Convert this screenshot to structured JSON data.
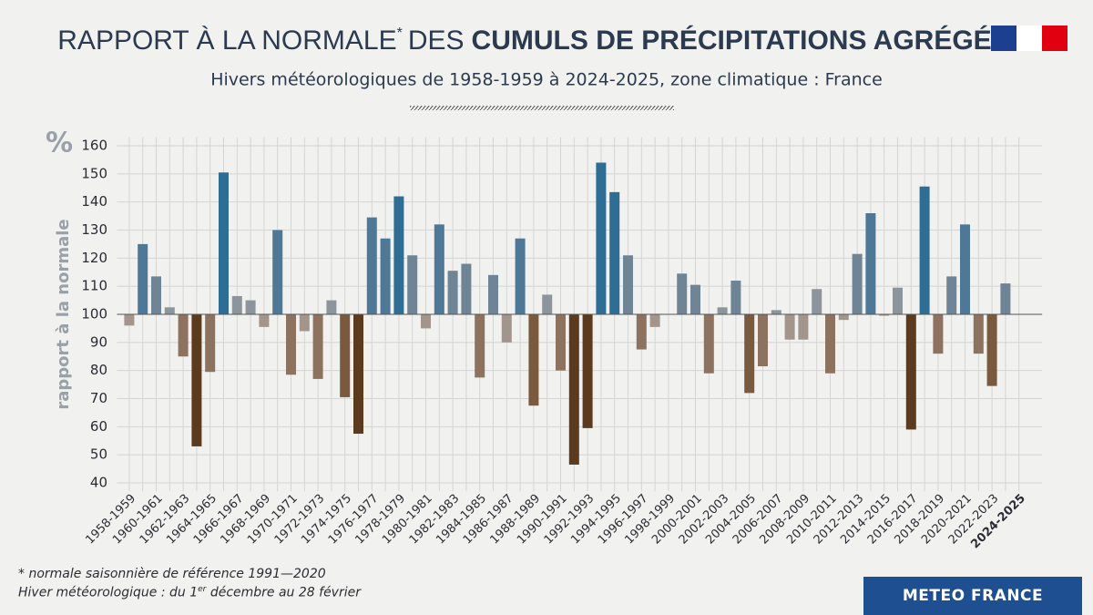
{
  "chart_data": {
    "type": "bar",
    "title_parts": [
      "RAPPORT À LA NORMALE",
      "*",
      "DES",
      "CUMULS DE PRÉCIPITATIONS AGRÉGÉES"
    ],
    "subtitle": "Hivers météorologiques de 1958-1959 à 2024-2025, zone climatique : France",
    "y_unit": "%",
    "y_label": "rapport à la normale",
    "footnote_1": "* normale saisonnière de référence 1991—2020",
    "footnote_2_parts": [
      "Hiver météorologique : du 1",
      "er",
      "décembre au 28 février"
    ],
    "brand": "METEO FRANCE",
    "baseline": 100,
    "grid": true,
    "ylim": [
      37,
      163
    ],
    "yticks": [
      40,
      50,
      60,
      70,
      80,
      90,
      100,
      110,
      120,
      130,
      140,
      150,
      160
    ],
    "categories": [
      "1958-1959",
      null,
      "1960-1961",
      null,
      "1962-1963",
      null,
      "1964-1965",
      null,
      "1966-1967",
      null,
      "1968-1969",
      null,
      "1970-1971",
      null,
      "1972-1973",
      null,
      "1974-1975",
      null,
      "1976-1977",
      null,
      "1978-1979",
      null,
      "1980-1981",
      null,
      "1982-1983",
      null,
      "1984-1985",
      null,
      "1986-1987",
      null,
      "1988-1989",
      null,
      "1990-1991",
      null,
      "1992-1993",
      null,
      "1994-1995",
      null,
      "1996-1997",
      null,
      "1998-1999",
      null,
      "2000-2001",
      null,
      "2002-2003",
      null,
      "2004-2005",
      null,
      "2006-2007",
      null,
      "2008-2009",
      null,
      "2010-2011",
      null,
      "2012-2013",
      null,
      "2014-2015",
      null,
      "2016-2017",
      null,
      "2018-2019",
      null,
      "2020-2021",
      null,
      "2022-2023",
      null,
      "2024-2025"
    ],
    "values": [
      96,
      125,
      113.5,
      102.5,
      85,
      53,
      79.5,
      150.5,
      106.5,
      105,
      95.5,
      130,
      78.5,
      94,
      77,
      105,
      70.5,
      57.5,
      134.5,
      127,
      142,
      121,
      95,
      132,
      115.5,
      118,
      77.5,
      114,
      90,
      127,
      67.5,
      107,
      80,
      46.5,
      59.5,
      154,
      143.5,
      121,
      87.5,
      95.5,
      100,
      114.5,
      110.5,
      79,
      102.5,
      112,
      72,
      81.5,
      101.5,
      91,
      91,
      109,
      79,
      98,
      121.5,
      136,
      99.5,
      109.5,
      59,
      145.5,
      86,
      113.5,
      132,
      86,
      74.5,
      111,
      null
    ],
    "colors": [
      "#a2968c",
      "#4f7896",
      "#6f8596",
      "#8c959c",
      "#8d735f",
      "#5c3a1e",
      "#8d735f",
      "#2e6d94",
      "#8c959c",
      "#8c959c",
      "#a2968c",
      "#4f7896",
      "#8d735f",
      "#a2968c",
      "#8d735f",
      "#8c959c",
      "#7a5a3f",
      "#5c3a1e",
      "#4f7896",
      "#4f7896",
      "#2e6d94",
      "#6f8596",
      "#a2968c",
      "#4f7896",
      "#6f8596",
      "#6f8596",
      "#8d735f",
      "#6f8596",
      "#a2968c",
      "#4f7896",
      "#7a5a3f",
      "#8c959c",
      "#8d735f",
      "#5c3a1e",
      "#5c3a1e",
      "#2e6d94",
      "#2e6d94",
      "#6f8596",
      "#8d735f",
      "#a2968c",
      "#8c959c",
      "#6f8596",
      "#6f8596",
      "#8d735f",
      "#8c959c",
      "#6f8596",
      "#7a5a3f",
      "#8d735f",
      "#8c959c",
      "#a2968c",
      "#a2968c",
      "#8c959c",
      "#8d735f",
      "#a2968c",
      "#6f8596",
      "#4f7896",
      "#a2968c",
      "#8c959c",
      "#5c3a1e",
      "#2e6d94",
      "#8d735f",
      "#6f8596",
      "#4f7896",
      "#8d735f",
      "#7a5a3f",
      "#6f8596",
      null
    ]
  }
}
